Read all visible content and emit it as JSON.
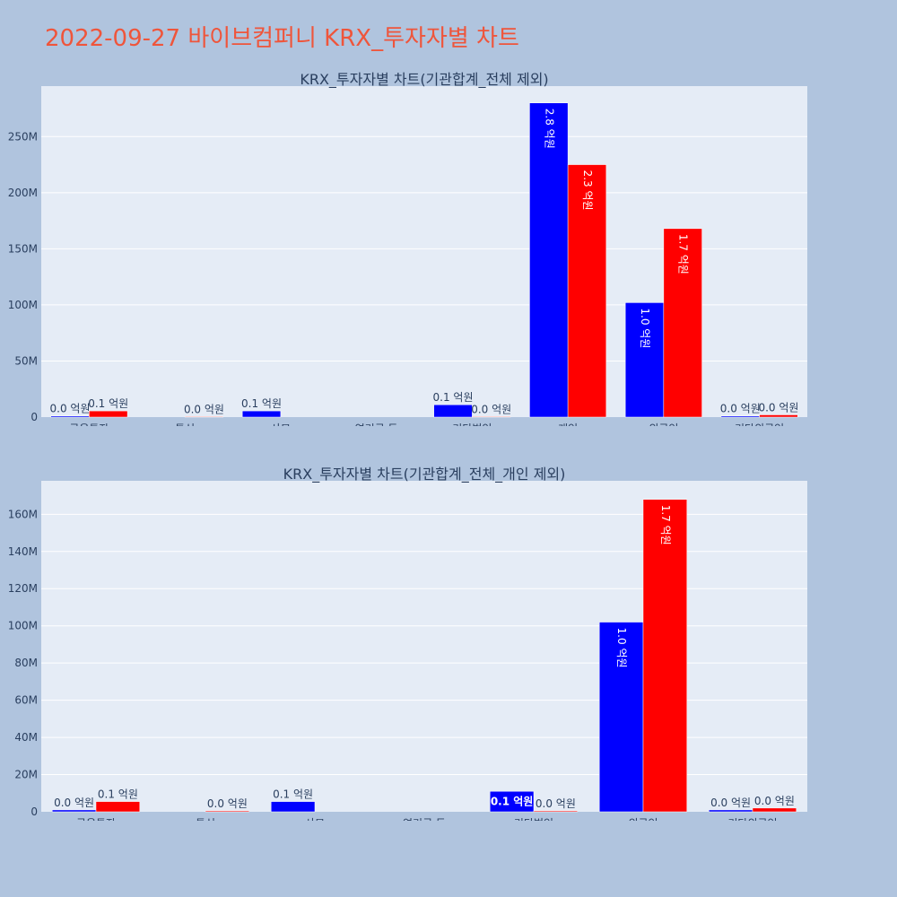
{
  "title": "2022-09-27 바이브컴퍼니 KRX_투자자별 차트",
  "colors": {
    "series_a": "#0000ff",
    "series_b": "#ff0000",
    "plot_bg": "#e5ecf6",
    "page_bg": "#b0c4de",
    "title": "#ef553b"
  },
  "chart_data": [
    {
      "type": "bar",
      "title": "KRX_투자자별 차트(기관합계_전체 제외)",
      "categories": [
        "금융투자",
        "투신",
        "사모",
        "연기금 등",
        "기타법인",
        "개인",
        "외국인",
        "기타외국인"
      ],
      "ylim": [
        0,
        295000000
      ],
      "yticks": [
        0,
        50000000,
        100000000,
        150000000,
        200000000,
        250000000
      ],
      "ytick_labels": [
        "0",
        "50M",
        "100M",
        "150M",
        "200M",
        "250M"
      ],
      "series": [
        {
          "values": [
            1000000,
            0,
            5500000,
            0,
            11000000,
            280000000,
            102000000,
            1000000
          ],
          "labels": [
            "0.0 억원",
            "",
            "0.1 억원",
            "",
            "0.1 억원",
            "2.8 억원",
            "1.0 억원",
            "0.0 억원"
          ]
        },
        {
          "values": [
            5500000,
            500000,
            0,
            0,
            500000,
            225000000,
            168000000,
            2000000
          ],
          "labels": [
            "0.1 억원",
            "0.0 억원",
            "",
            "",
            "0.0 억원",
            "2.3 억원",
            "1.7 억원",
            "0.0 억원"
          ]
        }
      ]
    },
    {
      "type": "bar",
      "title": "KRX_투자자별 차트(기관합계_전체_개인 제외)",
      "categories": [
        "금융투자",
        "투신",
        "사모",
        "연기금 등",
        "기타법인",
        "외국인",
        "기타외국인"
      ],
      "ylim": [
        0,
        178000000
      ],
      "yticks": [
        0,
        20000000,
        40000000,
        60000000,
        80000000,
        100000000,
        120000000,
        140000000,
        160000000
      ],
      "ytick_labels": [
        "0",
        "20M",
        "40M",
        "60M",
        "80M",
        "100M",
        "120M",
        "140M",
        "160M"
      ],
      "series": [
        {
          "values": [
            1000000,
            0,
            5500000,
            0,
            11000000,
            102000000,
            1000000
          ],
          "labels": [
            "0.0 억원",
            "",
            "0.1 억원",
            "",
            "0.1 억원",
            "1.0 억원",
            "0.0 억원"
          ]
        },
        {
          "values": [
            5500000,
            500000,
            0,
            0,
            500000,
            168000000,
            2000000
          ],
          "labels": [
            "0.1 억원",
            "0.0 억원",
            "",
            "",
            "0.0 억원",
            "1.7 억원",
            "0.0 억원"
          ]
        }
      ]
    }
  ]
}
